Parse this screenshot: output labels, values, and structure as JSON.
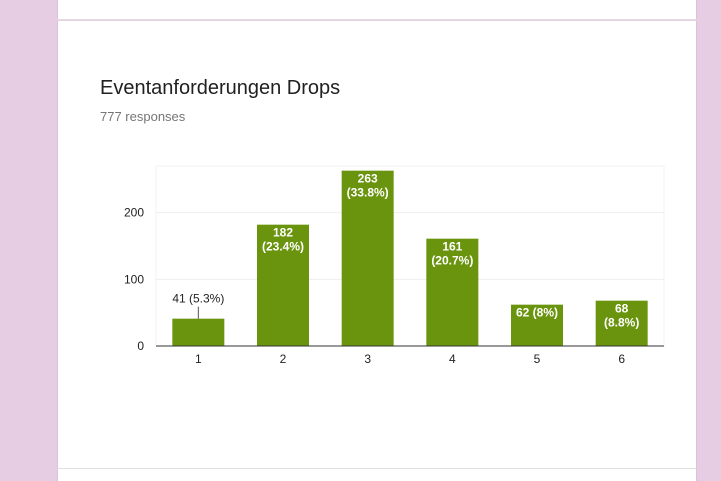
{
  "question": {
    "title": "Eventanforderungen Drops",
    "responses": "777 responses"
  },
  "colors": {
    "bar": "#6a940e",
    "background": "#e6cde3"
  },
  "chart_data": {
    "type": "bar",
    "categories": [
      "1",
      "2",
      "3",
      "4",
      "5",
      "6"
    ],
    "values": [
      41,
      182,
      263,
      161,
      62,
      68
    ],
    "labels": [
      [
        "41 (5.3%)"
      ],
      [
        "182",
        "(23.4%)"
      ],
      [
        "263",
        "(33.8%)"
      ],
      [
        "161",
        "(20.7%)"
      ],
      [
        "62 (8%)"
      ],
      [
        "68",
        "(8.8%)"
      ]
    ],
    "yticks": [
      0,
      100,
      200
    ],
    "ylim": [
      0,
      270
    ],
    "grid": true,
    "legend": "none"
  }
}
